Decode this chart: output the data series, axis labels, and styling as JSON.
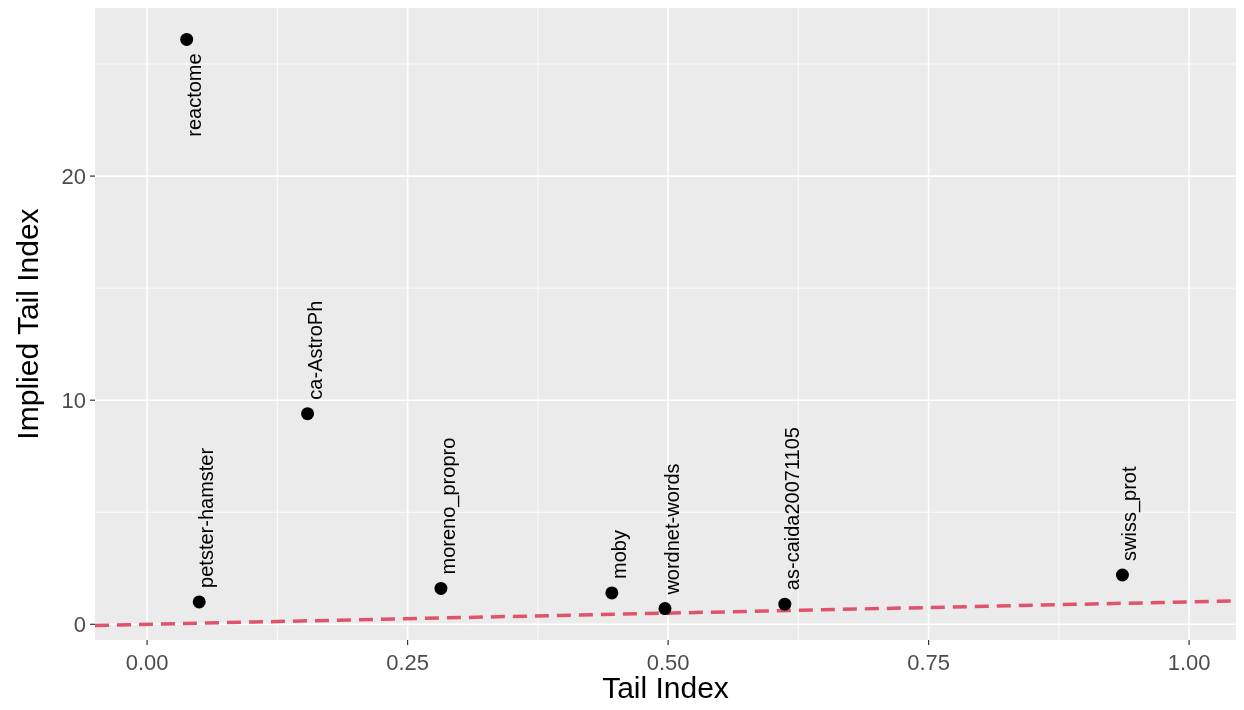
{
  "chart_data": {
    "type": "scatter",
    "xlabel": "Tail Index",
    "ylabel": "Implied Tail Index",
    "series": [
      {
        "type": "scatter",
        "color": "#000000",
        "x": [
          0.038,
          0.05,
          0.154,
          0.282,
          0.446,
          0.497,
          0.612,
          0.936
        ],
        "values": [
          26.1,
          1.0,
          9.4,
          1.6,
          1.4,
          0.7,
          0.9,
          2.2
        ]
      },
      {
        "type": "line",
        "color": "#df536b",
        "line_style": "dashed",
        "marker": "none",
        "x": [
          -0.05,
          1.04
        ],
        "values": [
          -0.05,
          1.04
        ]
      }
    ],
    "annotations": [
      {
        "text": "reactome",
        "x": 0.038,
        "y": 26.1
      },
      {
        "text": "petster-hamster",
        "x": 0.05,
        "y": 1.0
      },
      {
        "text": "ca-AstroPh",
        "x": 0.154,
        "y": 9.4
      },
      {
        "text": "moreno_propro",
        "x": 0.282,
        "y": 1.6
      },
      {
        "text": "moby",
        "x": 0.446,
        "y": 1.4
      },
      {
        "text": "wordnet-words",
        "x": 0.497,
        "y": 0.7
      },
      {
        "text": "as-caida20071105",
        "x": 0.612,
        "y": 0.9
      },
      {
        "text": "swiss_prot",
        "x": 0.936,
        "y": 2.2
      }
    ],
    "xlim": [
      -0.05,
      1.045
    ],
    "ylim": [
      -0.7,
      27.5
    ],
    "xticks": [
      {
        "value": 0,
        "label": "0.00"
      },
      0.25,
      {
        "value": 0.5,
        "label": "0.50"
      },
      0.75,
      {
        "value": 1,
        "label": "1.00"
      }
    ],
    "yticks": [
      0,
      10,
      20
    ],
    "grid": true,
    "marker": "circle"
  }
}
